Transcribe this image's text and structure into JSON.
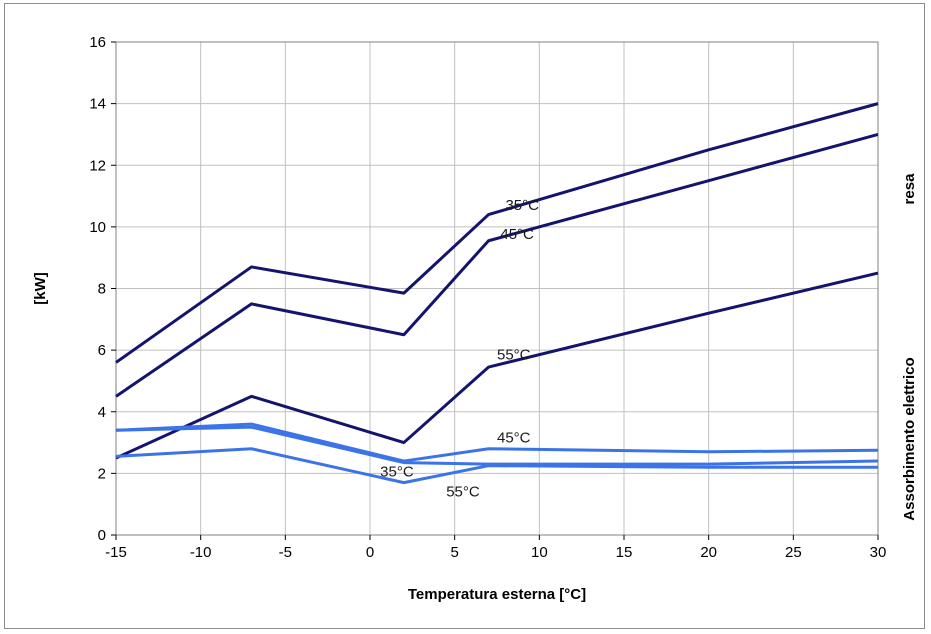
{
  "chart_data": {
    "type": "line",
    "title": "",
    "xlabel": "Temperatura esterna [°C]",
    "ylabel": "[kW]",
    "xlim": [
      -15,
      30
    ],
    "ylim": [
      0,
      16
    ],
    "xticks": [
      -15,
      -10,
      -5,
      0,
      5,
      10,
      15,
      20,
      25,
      30
    ],
    "yticks": [
      0,
      2,
      4,
      6,
      8,
      10,
      12,
      14,
      16
    ],
    "grid": true,
    "legend": "none",
    "right_labels": {
      "top": "resa",
      "bottom": "Assorbimento elettrico"
    },
    "colors": {
      "resa": "#14146e",
      "assorbimento": "#3b74e8",
      "grid": "#c0c0c0"
    },
    "series": [
      {
        "group": "resa",
        "x": [
          -15,
          -7,
          2,
          7,
          20,
          30
        ],
        "y": [
          5.6,
          8.7,
          7.85,
          10.4,
          12.5,
          14.0
        ]
      },
      {
        "group": "resa",
        "x": [
          -15,
          -7,
          2,
          7,
          20,
          30
        ],
        "y": [
          4.5,
          7.5,
          6.5,
          9.55,
          11.5,
          13.0
        ]
      },
      {
        "group": "resa",
        "x": [
          -15,
          -7,
          2,
          7,
          20,
          30
        ],
        "y": [
          2.5,
          4.5,
          3.0,
          5.45,
          7.2,
          8.5
        ]
      },
      {
        "group": "assorbimento",
        "x": [
          -15,
          -7,
          2,
          7,
          20,
          30
        ],
        "y": [
          3.4,
          3.6,
          2.4,
          2.8,
          2.7,
          2.75
        ]
      },
      {
        "group": "assorbimento",
        "x": [
          -15,
          -7,
          2,
          7,
          20,
          30
        ],
        "y": [
          3.4,
          3.5,
          2.35,
          2.3,
          2.3,
          2.4
        ]
      },
      {
        "group": "assorbimento",
        "x": [
          -15,
          -7,
          2,
          7,
          20,
          30
        ],
        "y": [
          2.55,
          2.8,
          1.7,
          2.25,
          2.2,
          2.2
        ]
      }
    ],
    "annotations": [
      {
        "text": "35°C",
        "x": 8,
        "y": 10.55
      },
      {
        "text": "45°C",
        "x": 7.7,
        "y": 9.6
      },
      {
        "text": "55°C",
        "x": 7.5,
        "y": 5.7
      },
      {
        "text": "45°C",
        "x": 7.5,
        "y": 3.0
      },
      {
        "text": "35°C",
        "x": 0.6,
        "y": 1.9
      },
      {
        "text": "55°C",
        "x": 4.5,
        "y": 1.25
      }
    ]
  }
}
